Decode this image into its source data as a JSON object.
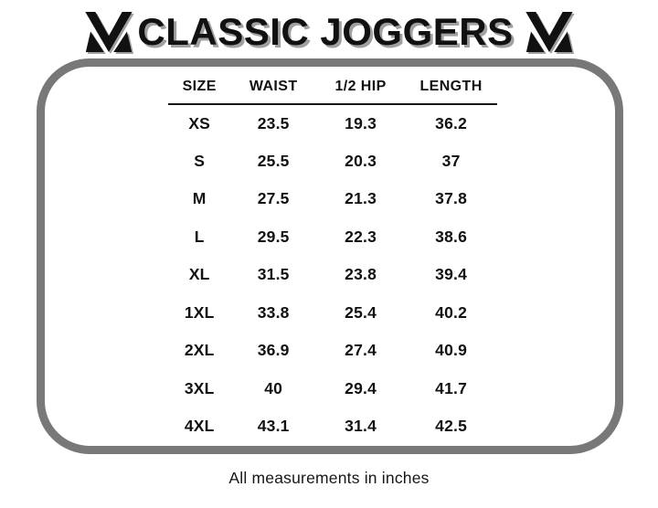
{
  "page": {
    "title": "CLASSIC JOGGERS",
    "footer_note": "All measurements in inches"
  },
  "logo": {
    "name": "brand-m-logo",
    "description": "stylized letter M built from a bold V and two corner triangles"
  },
  "colors": {
    "frame-gray": "#787878",
    "shadow-gray": "#a0a0a0",
    "ink": "#111111",
    "underline": "#161616",
    "bg": "#ffffff"
  },
  "table": {
    "columns": [
      "SIZE",
      "WAIST",
      "1/2 HIP",
      "LENGTH"
    ],
    "keys": [
      "size",
      "waist",
      "half_hip",
      "length"
    ],
    "rows": [
      {
        "size": "XS",
        "waist": "23.5",
        "half_hip": "19.3",
        "length": "36.2"
      },
      {
        "size": "S",
        "waist": "25.5",
        "half_hip": "20.3",
        "length": "37"
      },
      {
        "size": "M",
        "waist": "27.5",
        "half_hip": "21.3",
        "length": "37.8"
      },
      {
        "size": "L",
        "waist": "29.5",
        "half_hip": "22.3",
        "length": "38.6"
      },
      {
        "size": "XL",
        "waist": "31.5",
        "half_hip": "23.8",
        "length": "39.4"
      },
      {
        "size": "1XL",
        "waist": "33.8",
        "half_hip": "25.4",
        "length": "40.2"
      },
      {
        "size": "2XL",
        "waist": "36.9",
        "half_hip": "27.4",
        "length": "40.9"
      },
      {
        "size": "3XL",
        "waist": "40",
        "half_hip": "29.4",
        "length": "41.7"
      },
      {
        "size": "4XL",
        "waist": "43.1",
        "half_hip": "31.4",
        "length": "42.5"
      }
    ]
  },
  "chart_data": {
    "type": "table",
    "title": "CLASSIC JOGGERS",
    "columns": [
      "SIZE",
      "WAIST",
      "1/2 HIP",
      "LENGTH"
    ],
    "rows": [
      [
        "XS",
        23.5,
        19.3,
        36.2
      ],
      [
        "S",
        25.5,
        20.3,
        37
      ],
      [
        "M",
        27.5,
        21.3,
        37.8
      ],
      [
        "L",
        29.5,
        22.3,
        38.6
      ],
      [
        "XL",
        31.5,
        23.8,
        39.4
      ],
      [
        "1XL",
        33.8,
        25.4,
        40.2
      ],
      [
        "2XL",
        36.9,
        27.4,
        40.9
      ],
      [
        "3XL",
        40,
        29.4,
        41.7
      ],
      [
        "4XL",
        43.1,
        31.4,
        42.5
      ]
    ],
    "units": "inches",
    "note": "All measurements in inches"
  }
}
